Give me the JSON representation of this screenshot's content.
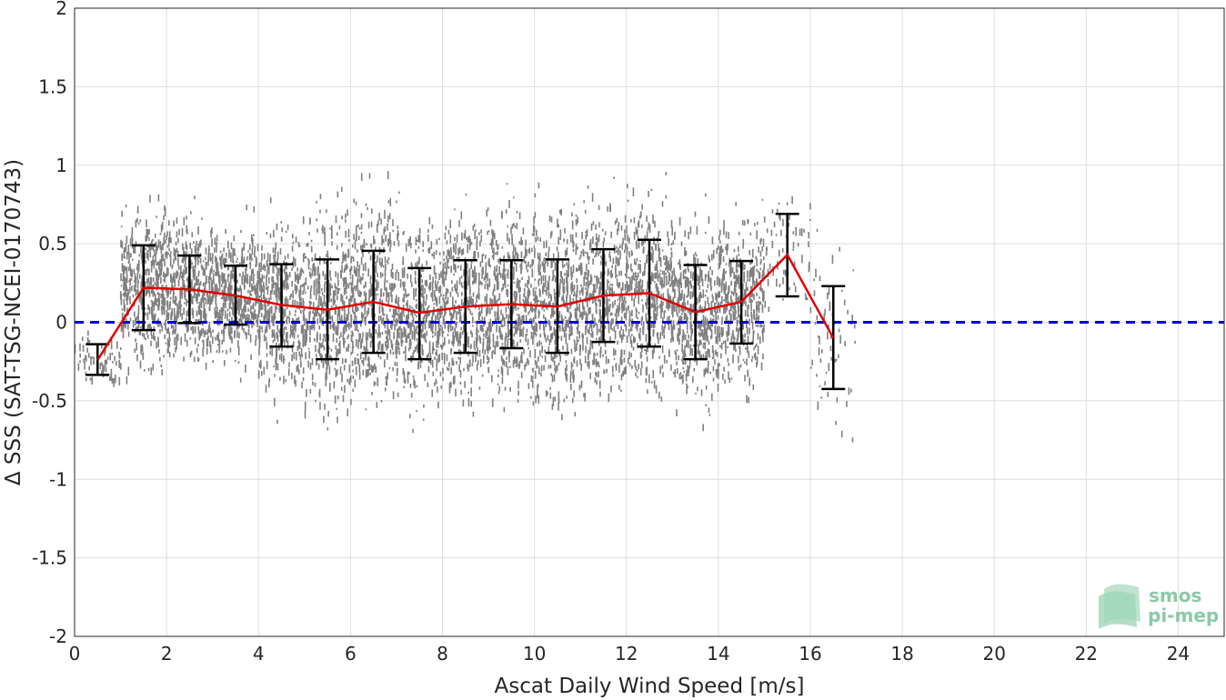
{
  "chart_data": {
    "type": "scatter",
    "xlabel": "Ascat Daily Wind Speed [m/s]",
    "ylabel": "Δ SSS (SAT-TSG-NCEI-0170743)",
    "xlim": [
      0,
      25
    ],
    "ylim": [
      -2,
      2
    ],
    "x_ticks": [
      0,
      2,
      4,
      6,
      8,
      10,
      12,
      14,
      16,
      18,
      20,
      22,
      24
    ],
    "y_ticks": [
      -2,
      -1.5,
      -1,
      -0.5,
      0,
      0.5,
      1,
      1.5,
      2
    ],
    "y_tick_labels": [
      "-2",
      "-1.5",
      "-1",
      "-0.5",
      "0",
      "0.5",
      "1",
      "1.5",
      "2"
    ],
    "grid": true,
    "reference_line": {
      "y": 0,
      "style": "dashed",
      "color": "#0000cc"
    },
    "scatter_cloud": {
      "color": "#808080",
      "description_points": "dense cloud of individual matchups between ~0.5 and ~16.5 m/s",
      "envelope": [
        {
          "x": 0.5,
          "center": -0.25,
          "spread": 0.08
        },
        {
          "x": 1.5,
          "center": 0.22,
          "spread": 0.26
        },
        {
          "x": 2.5,
          "center": 0.21,
          "spread": 0.22
        },
        {
          "x": 3.5,
          "center": 0.18,
          "spread": 0.2
        },
        {
          "x": 4.5,
          "center": 0.11,
          "spread": 0.26
        },
        {
          "x": 5.5,
          "center": 0.08,
          "spread": 0.32
        },
        {
          "x": 6.5,
          "center": 0.13,
          "spread": 0.33
        },
        {
          "x": 7.5,
          "center": 0.06,
          "spread": 0.29
        },
        {
          "x": 8.5,
          "center": 0.1,
          "spread": 0.3
        },
        {
          "x": 9.5,
          "center": 0.11,
          "spread": 0.3
        },
        {
          "x": 10.5,
          "center": 0.1,
          "spread": 0.31
        },
        {
          "x": 11.5,
          "center": 0.17,
          "spread": 0.3
        },
        {
          "x": 12.5,
          "center": 0.18,
          "spread": 0.31
        },
        {
          "x": 13.5,
          "center": 0.06,
          "spread": 0.29
        },
        {
          "x": 14.5,
          "center": 0.13,
          "spread": 0.25
        },
        {
          "x": 15.5,
          "center": 0.42,
          "spread": 0.22
        },
        {
          "x": 16.5,
          "center": -0.1,
          "spread": 0.3
        }
      ]
    },
    "series": [
      {
        "type": "line",
        "color": "#e00000",
        "x": [
          0.5,
          1.5,
          2.5,
          3.5,
          4.5,
          5.5,
          6.5,
          7.5,
          8.5,
          9.5,
          10.5,
          11.5,
          12.5,
          13.5,
          14.5,
          15.5,
          16.5
        ],
        "values": [
          -0.24,
          0.22,
          0.21,
          0.17,
          0.11,
          0.08,
          0.13,
          0.06,
          0.1,
          0.115,
          0.1,
          0.17,
          0.185,
          0.065,
          0.13,
          0.43,
          -0.1
        ]
      },
      {
        "type": "errorbar",
        "color": "#000000",
        "x": [
          0.5,
          1.5,
          2.5,
          3.5,
          4.5,
          5.5,
          6.5,
          7.5,
          8.5,
          9.5,
          10.5,
          11.5,
          12.5,
          13.5,
          14.5,
          15.5,
          16.5
        ],
        "lower": [
          -0.335,
          -0.05,
          -0.005,
          -0.015,
          -0.155,
          -0.235,
          -0.195,
          -0.235,
          -0.195,
          -0.165,
          -0.195,
          -0.125,
          -0.155,
          -0.235,
          -0.135,
          0.165,
          -0.425
        ],
        "upper": [
          -0.14,
          0.49,
          0.425,
          0.36,
          0.37,
          0.4,
          0.455,
          0.345,
          0.395,
          0.395,
          0.4,
          0.465,
          0.525,
          0.365,
          0.39,
          0.69,
          0.23
        ]
      }
    ]
  },
  "logo": {
    "line1": "smos",
    "line2": "pi-mep"
  }
}
